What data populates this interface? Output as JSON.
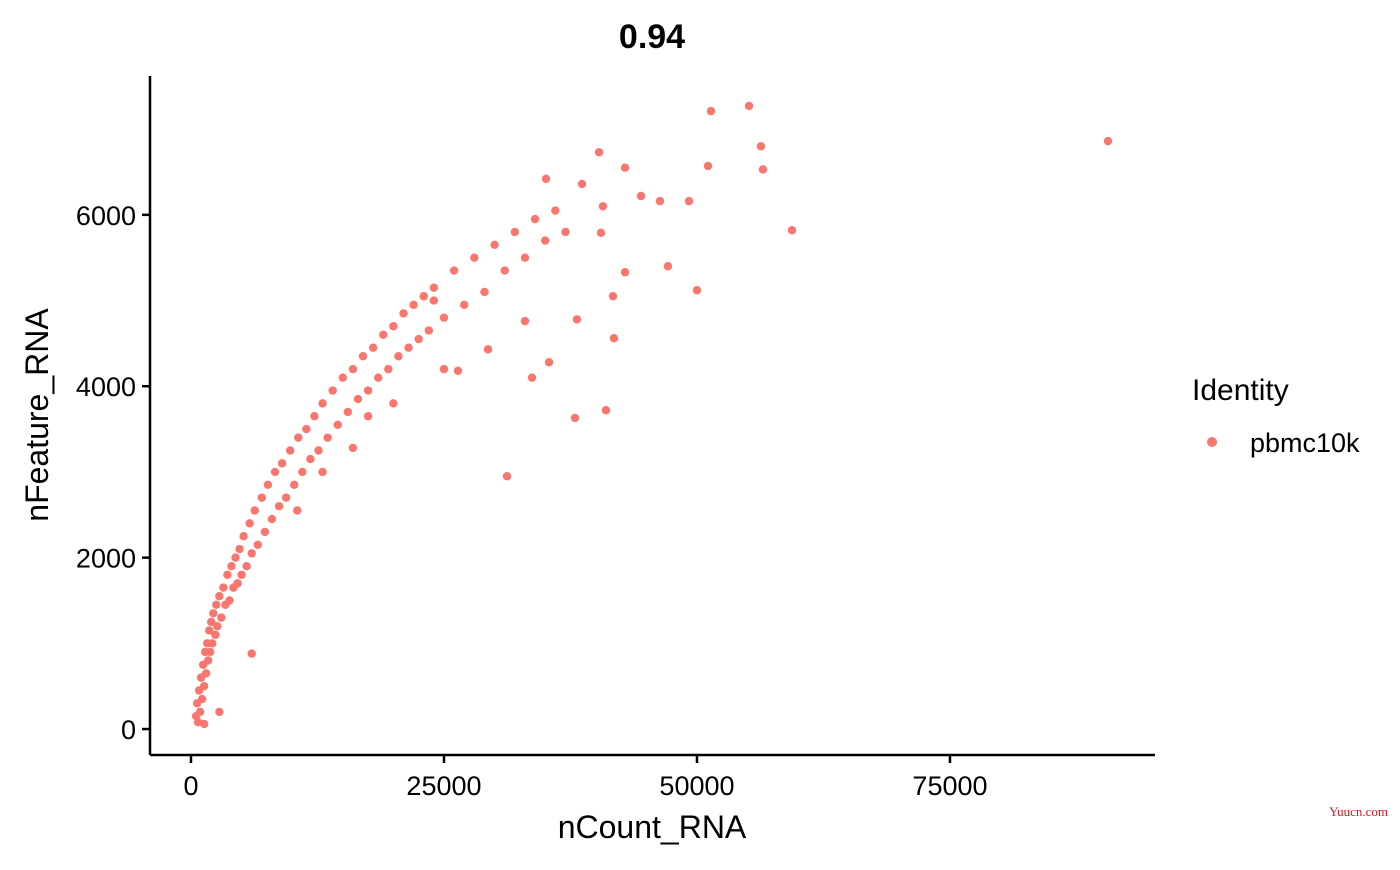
{
  "chart_data": {
    "type": "scatter",
    "title": "0.94",
    "x_label": "nCount_RNA",
    "y_label": "nFeature_RNA",
    "legend_title": "Identity",
    "watermark": "Yuucn.com",
    "grid": false,
    "xlim": [
      -4050,
      95260
    ],
    "ylim": [
      -303,
      7620
    ],
    "xticks": [
      0,
      25000,
      50000,
      75000
    ],
    "yticks": [
      0,
      2000,
      4000,
      6000
    ],
    "x": [
      500,
      600,
      700,
      800,
      900,
      1000,
      1100,
      1200,
      1300,
      1400,
      1500,
      1600,
      1700,
      1800,
      1900,
      2000,
      2100,
      2200,
      2400,
      2500,
      2600,
      2800,
      3000,
      3200,
      3400,
      3600,
      3800,
      4000,
      4200,
      4400,
      4600,
      4800,
      5000,
      5200,
      5500,
      5800,
      6000,
      6300,
      6600,
      7000,
      7300,
      7600,
      8000,
      8300,
      8700,
      9000,
      9400,
      9800,
      10200,
      10600,
      11000,
      11400,
      11800,
      12200,
      12600,
      13000,
      13500,
      14000,
      14500,
      15000,
      15500,
      16000,
      16500,
      17000,
      17500,
      18000,
      18500,
      19000,
      19500,
      20000,
      20500,
      21000,
      21500,
      22000,
      22500,
      23000,
      23500,
      24000,
      25000,
      26000,
      27000,
      28000,
      29000,
      30000,
      31000,
      32000,
      33000,
      34000,
      35000,
      36000,
      37000,
      1300,
      2800,
      6000,
      10500,
      16000,
      17500,
      20000,
      25000,
      24000,
      13000,
      51380,
      55140,
      56320,
      56520,
      90610,
      59390,
      51090,
      50000,
      47130,
      41700,
      41800,
      41010,
      37940,
      31230,
      38140,
      35380,
      33700,
      42890,
      40320,
      42890,
      44470,
      49210,
      46340,
      38640,
      35080,
      40710,
      40510,
      33000,
      29350,
      26380
    ],
    "series": [
      {
        "name": "pbmc10k",
        "color": "#F8766D",
        "values": [
          150,
          300,
          80,
          450,
          200,
          600,
          350,
          750,
          500,
          900,
          650,
          1000,
          800,
          1150,
          900,
          1250,
          1000,
          1350,
          1100,
          1450,
          1200,
          1550,
          1300,
          1650,
          1450,
          1800,
          1500,
          1900,
          1650,
          2000,
          1700,
          2100,
          1800,
          2250,
          1900,
          2400,
          2050,
          2550,
          2150,
          2700,
          2300,
          2850,
          2450,
          3000,
          2600,
          3100,
          2700,
          3250,
          2850,
          3400,
          3000,
          3500,
          3150,
          3650,
          3250,
          3800,
          3400,
          3950,
          3550,
          4100,
          3700,
          4200,
          3850,
          4350,
          3950,
          4450,
          4100,
          4600,
          4200,
          4700,
          4350,
          4850,
          4450,
          4950,
          4550,
          5050,
          4650,
          5150,
          4800,
          5350,
          4950,
          5500,
          5100,
          5650,
          5350,
          5800,
          5500,
          5950,
          5700,
          6050,
          5800,
          60,
          200,
          880,
          2550,
          3280,
          3650,
          3800,
          4200,
          5000,
          3000,
          7210,
          7270,
          6800,
          6530,
          6860,
          5820,
          6570,
          5120,
          5400,
          5050,
          4560,
          3720,
          3630,
          2950,
          4780,
          4280,
          4100,
          5330,
          6730,
          6550,
          6220,
          6160,
          6160,
          6360,
          6420,
          6100,
          5790,
          4760,
          4430,
          4180
        ]
      }
    ]
  }
}
